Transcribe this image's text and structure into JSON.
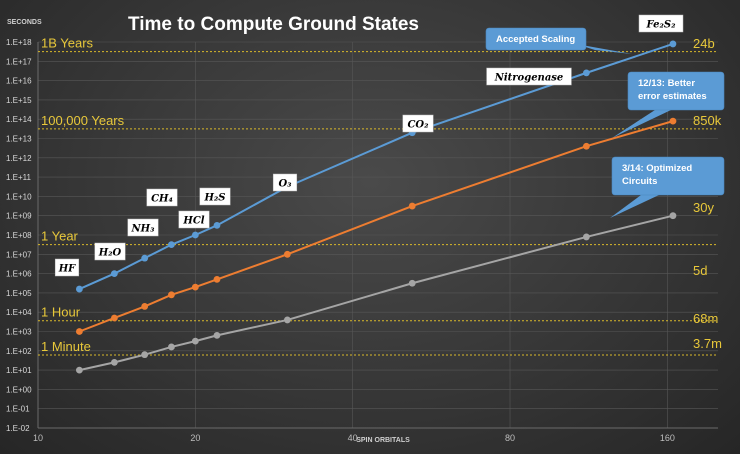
{
  "chart_data": {
    "type": "line",
    "title": "Time to Compute Ground States",
    "xlabel": "SPIN ORBITALS",
    "ylabel": "SECONDS",
    "x_scale": "log",
    "y_scale": "log",
    "xlim": [
      10,
      200
    ],
    "ylim_exponent": [
      -2,
      18
    ],
    "x_ticks": [
      "10",
      "20",
      "40",
      "80",
      "160"
    ],
    "y_ticks": [
      "1.E-02",
      "1.E-01",
      "1.E+00",
      "1.E+01",
      "1.E+02",
      "1.E+03",
      "1.E+04",
      "1.E+05",
      "1.E+06",
      "1.E+07",
      "1.E+08",
      "1.E+09",
      "1.E+10",
      "1.E+11",
      "1.E+12",
      "1.E+13",
      "1.E+14",
      "1.E+15",
      "1.E+16",
      "1.E+17",
      "1.E+18"
    ],
    "grid": true,
    "series": [
      {
        "color": "#5b9bd5",
        "x": [
          12,
          14,
          16,
          18,
          20,
          22,
          30,
          52,
          112,
          164
        ],
        "y_log10": [
          5.2,
          6.0,
          6.8,
          7.5,
          8.0,
          8.5,
          10.5,
          13.3,
          16.4,
          17.9
        ]
      },
      {
        "color": "#ed7d31",
        "x": [
          12,
          14,
          16,
          18,
          20,
          22,
          30,
          52,
          112,
          164
        ],
        "y_log10": [
          3.0,
          3.7,
          4.3,
          4.9,
          5.3,
          5.7,
          7.0,
          9.5,
          12.6,
          13.9
        ]
      },
      {
        "color": "#a5a5a5",
        "x": [
          12,
          14,
          16,
          18,
          20,
          22,
          30,
          52,
          112,
          164
        ],
        "y_log10": [
          1.0,
          1.4,
          1.8,
          2.2,
          2.5,
          2.8,
          3.6,
          5.5,
          7.9,
          9.0
        ]
      }
    ],
    "reference_lines": [
      {
        "label": "1B Years",
        "y_log10": 17.5
      },
      {
        "label": "100,000  Years",
        "y_log10": 13.5
      },
      {
        "label": "1 Year",
        "y_log10": 7.5
      },
      {
        "label": "1 Hour",
        "y_log10": 3.56
      },
      {
        "label": "1 Minute",
        "y_log10": 1.78
      }
    ],
    "right_labels": [
      "24b",
      "850k",
      "30y",
      "5d",
      "68m",
      "3.7m"
    ],
    "molecule_labels": [
      {
        "text": "HF",
        "x": 12,
        "y_log10": 6.2
      },
      {
        "text": "H₂O",
        "x": 14,
        "y_log10": 7.1
      },
      {
        "text": "NH₃",
        "x": 16,
        "y_log10": 8.2
      },
      {
        "text": "CH₄",
        "x": 17,
        "y_log10": 9.7
      },
      {
        "text": "HCl",
        "x": 19,
        "y_log10": 8.6
      },
      {
        "text": "H₂S",
        "x": 21,
        "y_log10": 9.7
      },
      {
        "text": "O₃",
        "x": 28,
        "y_log10": 10.7
      },
      {
        "text": "CO₂",
        "x": 52,
        "y_log10": 14.5
      },
      {
        "text": "Nitrogenase",
        "x": 110,
        "y_log10": 16.8
      },
      {
        "text": "Fe₂S₂",
        "x": 160,
        "y_log10": 18.5
      }
    ],
    "callouts": [
      {
        "lines": [
          "Accepted Scaling"
        ]
      },
      {
        "lines": [
          "12/13: Better",
          "error estimates"
        ]
      },
      {
        "lines": [
          "3/14: Optimized",
          "Circuits"
        ]
      }
    ]
  }
}
